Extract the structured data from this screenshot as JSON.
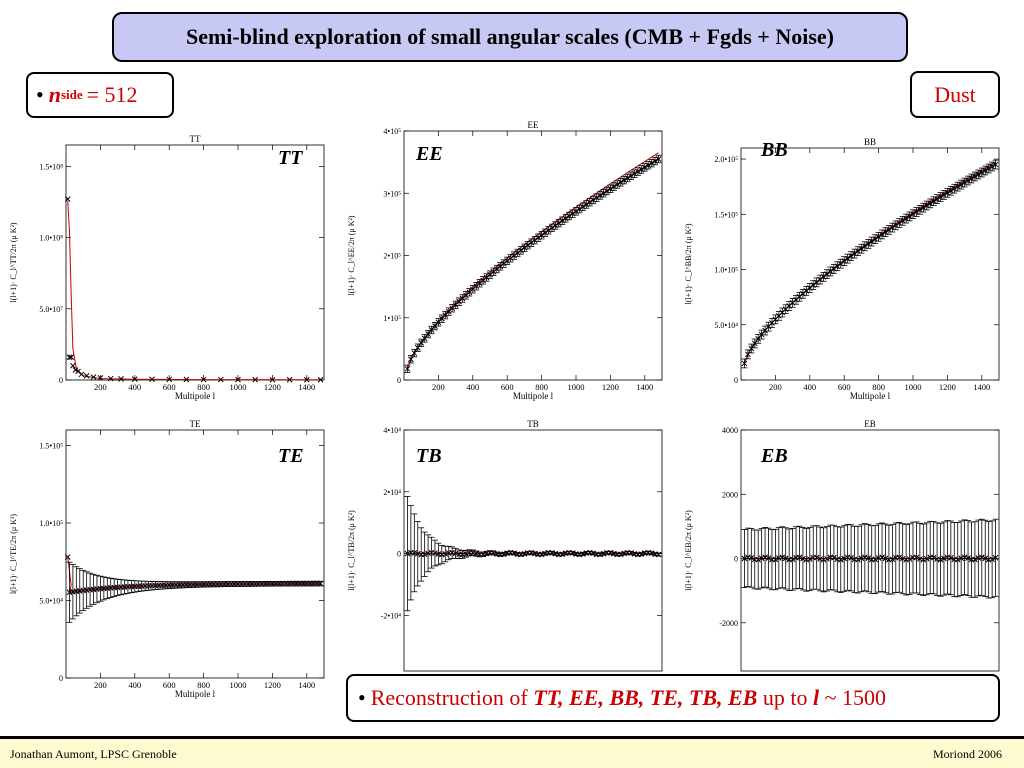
{
  "slide": {
    "title": "Semi-blind exploration of small angular scales (CMB + Fgds + Noise)",
    "nside": {
      "bullet": "•",
      "n": "n",
      "sub": "side",
      "value": "= 512"
    },
    "component": "Dust",
    "reconstruction": {
      "bullet": "•",
      "prefix": "Reconstruction of ",
      "spectra": "TT, EE, BB, TE, TB, EB",
      "middle": " up to ",
      "l": "l",
      "suffix": " ~ 1500"
    },
    "footer_left": "Jonathan Aumont, LPSC Grenoble",
    "footer_right": "Moriond 2006"
  },
  "colors": {
    "title_bg": "#c8c8f4",
    "accent_red": "#cc0000",
    "footer_bg": "#fffbd0",
    "model_line": "#cc0000",
    "points": "#000000"
  },
  "chart_data": [
    {
      "id": "tt",
      "type": "scatter",
      "title": "TT",
      "label": "TT",
      "xlabel": "Multipole l",
      "ylabel": "l(l+1)· C_l^TT/2π (μ K²)",
      "xlim": [
        0,
        1500
      ],
      "ylim": [
        0,
        165000000.0
      ],
      "xticks": [
        {
          "v": 200,
          "t": "200"
        },
        {
          "v": 400,
          "t": "400"
        },
        {
          "v": 600,
          "t": "600"
        },
        {
          "v": 800,
          "t": "800"
        },
        {
          "v": 1000,
          "t": "1000"
        },
        {
          "v": 1200,
          "t": "1200"
        },
        {
          "v": 1400,
          "t": "1400"
        }
      ],
      "yticks": [
        {
          "v": 0,
          "t": "0"
        },
        {
          "v": 50000000.0,
          "t": "5.0•10⁷"
        },
        {
          "v": 100000000.0,
          "t": "1.0•10⁸"
        },
        {
          "v": 150000000.0,
          "t": "1.5•10⁸"
        }
      ],
      "model": [
        [
          10,
          126000000.0
        ],
        [
          20,
          105000000.0
        ],
        [
          30,
          60000000.0
        ],
        [
          40,
          22000000.0
        ],
        [
          60,
          8000000.0
        ],
        [
          100,
          3000000.0
        ],
        [
          200,
          1000000.0
        ],
        [
          400,
          500000.0
        ],
        [
          800,
          300000.0
        ],
        [
          1500,
          200000.0
        ]
      ],
      "points": [
        [
          10,
          127000000.0
        ],
        [
          20,
          16000000.0
        ],
        [
          30,
          16000000.0
        ],
        [
          40,
          10000000.0
        ],
        [
          55,
          7000000.0
        ],
        [
          70,
          6000000.0
        ],
        [
          90,
          4000000.0
        ],
        [
          120,
          3000000.0
        ],
        [
          160,
          2000000.0
        ],
        [
          200,
          1500000.0
        ],
        [
          260,
          1000000.0
        ],
        [
          320,
          800000.0
        ],
        [
          400,
          600000.0
        ],
        [
          500,
          500000.0
        ],
        [
          600,
          400000.0
        ],
        [
          700,
          350000.0
        ],
        [
          800,
          300000.0
        ],
        [
          900,
          300000.0
        ],
        [
          1000,
          250000.0
        ],
        [
          1100,
          250000.0
        ],
        [
          1200,
          200000.0
        ],
        [
          1300,
          200000.0
        ],
        [
          1400,
          200000.0
        ],
        [
          1480,
          200000.0
        ]
      ]
    },
    {
      "id": "ee",
      "type": "scatter",
      "title": "EE",
      "label": "EE",
      "xlabel": "Multipole l",
      "ylabel": "l(l+1)· C_l^EE/2π (μ K²)",
      "xlim": [
        0,
        1500
      ],
      "ylim": [
        0,
        400000.0
      ],
      "xticks": [
        {
          "v": 200,
          "t": "200"
        },
        {
          "v": 400,
          "t": "400"
        },
        {
          "v": 600,
          "t": "600"
        },
        {
          "v": 800,
          "t": "800"
        },
        {
          "v": 1000,
          "t": "1000"
        },
        {
          "v": 1200,
          "t": "1200"
        },
        {
          "v": 1400,
          "t": "1400"
        }
      ],
      "yticks": [
        {
          "v": 0,
          "t": "0"
        },
        {
          "v": 100000.0,
          "t": "1•10⁵"
        },
        {
          "v": 200000.0,
          "t": "2•10⁵"
        },
        {
          "v": 300000.0,
          "t": "3•10⁵"
        },
        {
          "v": 400000.0,
          "t": "4•10⁵"
        }
      ],
      "curve": {
        "kind": "pow",
        "x0": 20,
        "y0": 18000,
        "x1": 1480,
        "y1": 355000
      },
      "model_end_y": 365000,
      "point_errors": 6000
    },
    {
      "id": "bb",
      "type": "scatter",
      "title": "BB",
      "label": "BB",
      "xlabel": "Multipole l",
      "ylabel": "l(l+1)· C_l^BB/2π (μ K²)",
      "xlim": [
        0,
        1500
      ],
      "ylim": [
        0,
        210000.0
      ],
      "xticks": [
        {
          "v": 200,
          "t": "200"
        },
        {
          "v": 400,
          "t": "400"
        },
        {
          "v": 600,
          "t": "600"
        },
        {
          "v": 800,
          "t": "800"
        },
        {
          "v": 1000,
          "t": "1000"
        },
        {
          "v": 1200,
          "t": "1200"
        },
        {
          "v": 1400,
          "t": "1400"
        }
      ],
      "yticks": [
        {
          "v": 0,
          "t": "0"
        },
        {
          "v": 50000.0,
          "t": "5.0•10⁴"
        },
        {
          "v": 100000.0,
          "t": "1.0•10⁵"
        },
        {
          "v": 150000.0,
          "t": "1.5•10⁵"
        },
        {
          "v": 200000.0,
          "t": "2.0•10⁵"
        }
      ],
      "curve": {
        "kind": "pow",
        "x0": 20,
        "y0": 15000,
        "x1": 1480,
        "y1": 195000
      },
      "model_end_y": 197000,
      "point_errors": 4000
    },
    {
      "id": "te",
      "type": "scatter",
      "title": "TE",
      "label": "TE",
      "xlabel": "Multipole l",
      "ylabel": "l(l+1)· C_l^TE/2π (μ K²)",
      "xlim": [
        0,
        1500
      ],
      "ylim": [
        0,
        160000.0
      ],
      "xticks": [
        {
          "v": 200,
          "t": "200"
        },
        {
          "v": 400,
          "t": "400"
        },
        {
          "v": 600,
          "t": "600"
        },
        {
          "v": 800,
          "t": "800"
        },
        {
          "v": 1000,
          "t": "1000"
        },
        {
          "v": 1200,
          "t": "1200"
        },
        {
          "v": 1400,
          "t": "1400"
        }
      ],
      "yticks": [
        {
          "v": 0,
          "t": "0"
        },
        {
          "v": 50000.0,
          "t": "5.0•10⁴"
        },
        {
          "v": 100000.0,
          "t": "1.0•10⁵"
        },
        {
          "v": 150000.0,
          "t": "1.5•10⁵"
        }
      ],
      "curve": {
        "kind": "te"
      },
      "first_point": [
        10,
        78000
      ]
    },
    {
      "id": "tb",
      "type": "scatter",
      "title": "TB",
      "label": "TB",
      "xlabel": "",
      "ylabel": "l(l+1)· C_l^TB/2π (μ K²)",
      "xlim": [
        0,
        1500
      ],
      "ylim": [
        -38000.0,
        40000.0
      ],
      "xticks": [],
      "yticks": [
        {
          "v": -20000.0,
          "t": "-2•10⁴"
        },
        {
          "v": 0,
          "t": "0"
        },
        {
          "v": 20000.0,
          "t": "2•10⁴"
        },
        {
          "v": 40000.0,
          "t": "4•10⁴"
        }
      ],
      "curve": {
        "kind": "null"
      },
      "err0": 18000,
      "errdecay": 0.82
    },
    {
      "id": "eb",
      "type": "scatter",
      "title": "EB",
      "label": "EB",
      "xlabel": "",
      "ylabel": "l(l+1)· C_l^EB/2π (μ K²)",
      "xlim": [
        0,
        1500
      ],
      "ylim": [
        -3500,
        4000
      ],
      "xticks": [],
      "yticks": [
        {
          "v": -2000,
          "t": "-2000"
        },
        {
          "v": 0,
          "t": "0"
        },
        {
          "v": 2000,
          "t": "2000"
        },
        {
          "v": 4000,
          "t": "4000"
        }
      ],
      "curve": {
        "kind": "null"
      },
      "err0": 900,
      "errgrow": 300
    }
  ]
}
